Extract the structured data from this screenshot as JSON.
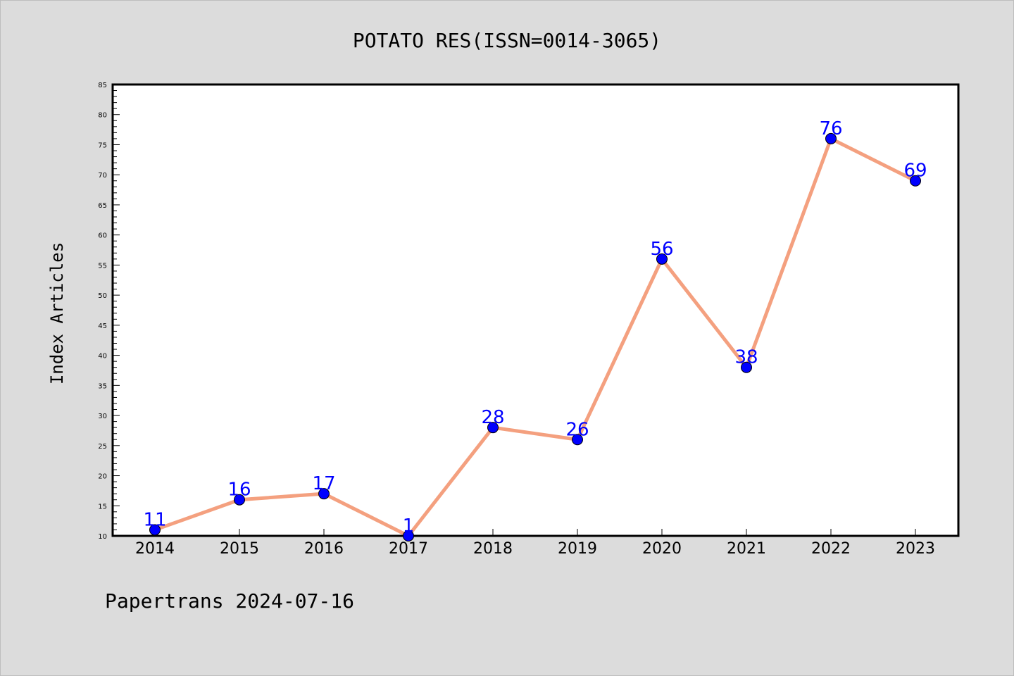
{
  "chart_data": {
    "type": "line",
    "title": "POTATO RES(ISSN=0014-3065)",
    "xlabel": "",
    "ylabel": "Index Articles",
    "categories": [
      "2014",
      "2015",
      "2016",
      "2017",
      "2018",
      "2019",
      "2020",
      "2021",
      "2022",
      "2023"
    ],
    "series": [
      {
        "values": [
          11,
          16,
          17,
          1,
          28,
          26,
          56,
          38,
          76,
          69
        ],
        "line_color": "#f4a07f",
        "marker_color": "#0000ff"
      }
    ],
    "data_labels": [
      "11",
      "16",
      "17",
      "1",
      "28",
      "26",
      "56",
      "38",
      "76",
      "69"
    ],
    "ylim": [
      10,
      85
    ],
    "y_major_step": 5,
    "y_minor_step": 1,
    "y_ticks": [
      "10",
      "15",
      "20",
      "25",
      "30",
      "35",
      "40",
      "45",
      "50",
      "55",
      "60",
      "65",
      "70",
      "75",
      "80",
      "85"
    ],
    "grid": false,
    "legend": "none"
  },
  "footer": {
    "text": "Papertrans 2024-07-16"
  },
  "colors": {
    "background": "#dcdcdc",
    "plot_background": "#ffffff",
    "line": "#f4a07f",
    "marker": "#0000ff",
    "data_label": "#0000ff"
  }
}
